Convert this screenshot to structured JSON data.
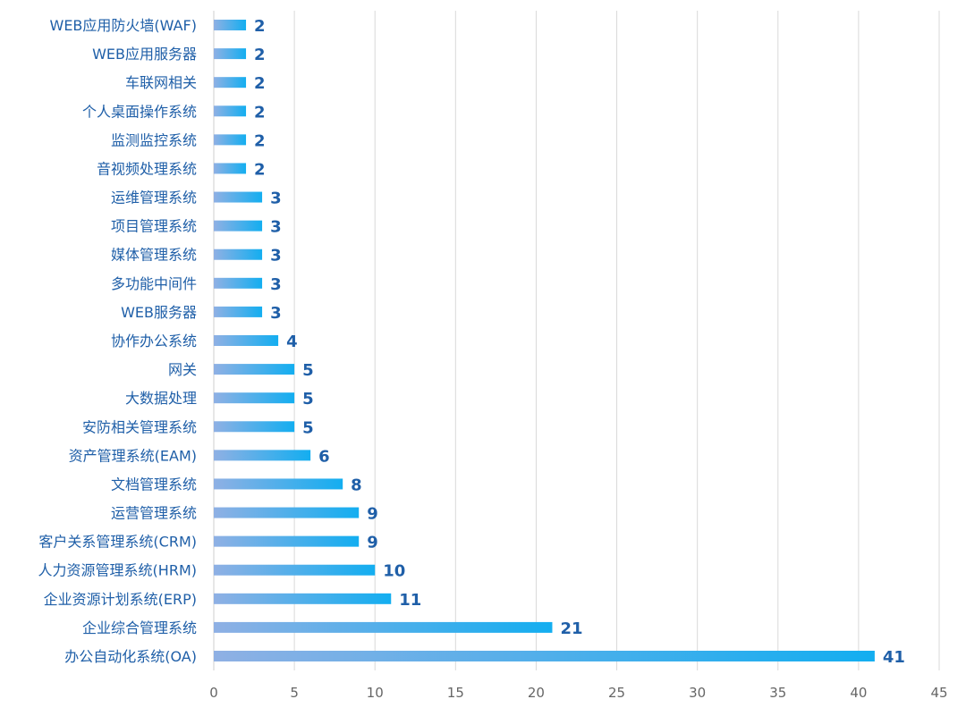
{
  "chart_data": {
    "type": "bar",
    "orientation": "horizontal",
    "title": "",
    "xlabel": "",
    "ylabel": "",
    "xlim": [
      0,
      45
    ],
    "x_ticks": [
      0,
      5,
      10,
      15,
      20,
      25,
      30,
      35,
      40,
      45
    ],
    "grid": true,
    "legend": "none",
    "colors": {
      "bar_start": "#8fb0e4",
      "bar_end": "#13aef0",
      "category_text": "#1f5fa8",
      "value_text": "#1f5fa8",
      "tick_text": "#666666",
      "grid": "#d9d9d9"
    },
    "categories": [
      "WEB应用防火墙(WAF)",
      "WEB应用服务器",
      "车联网相关",
      "个人桌面操作系统",
      "监测监控系统",
      "音视频处理系统",
      "运维管理系统",
      "项目管理系统",
      "媒体管理系统",
      "多功能中间件",
      "WEB服务器",
      "协作办公系统",
      "网关",
      "大数据处理",
      "安防相关管理系统",
      "资产管理系统(EAM)",
      "文档管理系统",
      "运营管理系统",
      "客户关系管理系统(CRM)",
      "人力资源管理系统(HRM)",
      "企业资源计划系统(ERP)",
      "企业综合管理系统",
      "办公自动化系统(OA)"
    ],
    "values": [
      2,
      2,
      2,
      2,
      2,
      2,
      3,
      3,
      3,
      3,
      3,
      4,
      5,
      5,
      5,
      6,
      8,
      9,
      9,
      10,
      11,
      21,
      41
    ]
  }
}
